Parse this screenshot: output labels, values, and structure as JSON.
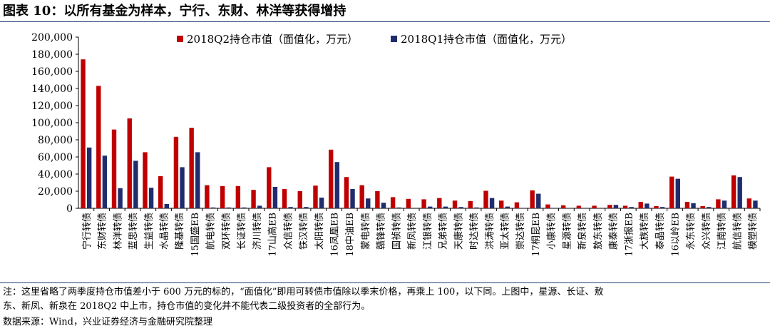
{
  "title": "图表 10：以所有基金为样本，宁行、东财、林洋等获得增持",
  "note": {
    "line1": "注：这里省略了两季度持仓市值差小于 600 万元的标的，“面值化”即用可转债市值除以季末价格，再乘上 100，以下同。上图中，星源、长证、敖",
    "line2": "东、新凤、新泉在 2018Q2 中上市，持仓市值的变化并不能代表二级投资者的全部行为。"
  },
  "source": "数据来源：Wind，兴业证券经济与金融研究院整理",
  "colors": {
    "q2": "#c00000",
    "q1": "#1f2d6e",
    "frame": "#1f3f75"
  },
  "chart_data": {
    "type": "bar",
    "ylim": [
      0,
      200000
    ],
    "yticks": [
      0,
      20000,
      40000,
      60000,
      80000,
      100000,
      120000,
      140000,
      160000,
      180000,
      200000
    ],
    "ytick_labels": [
      "0",
      "20,000",
      "40,000",
      "60,000",
      "80,000",
      "100,000",
      "120,000",
      "140,000",
      "160,000",
      "180,000",
      "200,000"
    ],
    "legend": "top-right",
    "categories": [
      "宁行转债",
      "东财转债",
      "林洋转债",
      "蓝思转债",
      "生益转债",
      "水晶转债",
      "隆基转债",
      "15国盛EB",
      "航电转债",
      "双环转债",
      "长证转债",
      "济川转债",
      "17山高EB",
      "众信转债",
      "铁汉转债",
      "太阳转债",
      "16凤凰EB",
      "18中油EB",
      "蒙电转债",
      "赣锋转债",
      "国祯转债",
      "新凤转债",
      "江银转债",
      "兄弟转债",
      "天康转债",
      "时达转债",
      "洪涛转债",
      "亚太转债",
      "崇达转债",
      "17桐昆EB",
      "小康转债",
      "星源转债",
      "新泉转债",
      "敖东转债",
      "康泰转债",
      "17浙报EB",
      "大族转债",
      "泰晶转债",
      "16以岭EB",
      "永东转债",
      "众兴转债",
      "江南转债",
      "航信转债",
      "模塑转债"
    ],
    "series": [
      {
        "name": "2018Q2持仓市值（面值化，万元）",
        "values": [
          174000,
          143000,
          92000,
          105000,
          65500,
          37500,
          83500,
          94000,
          27000,
          26000,
          26000,
          21500,
          48000,
          22500,
          20000,
          26500,
          68500,
          36500,
          27000,
          20000,
          13000,
          11000,
          10500,
          12000,
          9000,
          8500,
          20500,
          9000,
          7000,
          21000,
          4500,
          3500,
          3000,
          3000,
          4000,
          3000,
          7500,
          2500,
          37000,
          7500,
          2500,
          10500,
          38500,
          11500
        ]
      },
      {
        "name": "2018Q1持仓市值（面值化，万元）",
        "values": [
          71000,
          61500,
          23500,
          55500,
          24000,
          5000,
          48000,
          65500,
          1000,
          1000,
          1000,
          3000,
          25000,
          1500,
          1500,
          12500,
          54000,
          22500,
          11500,
          6500,
          1000,
          0,
          2000,
          2000,
          1500,
          1000,
          12000,
          2000,
          500,
          17000,
          500,
          0,
          0,
          0,
          4000,
          1500,
          5500,
          1500,
          34500,
          6000,
          1500,
          9000,
          36500,
          9000
        ]
      }
    ]
  }
}
